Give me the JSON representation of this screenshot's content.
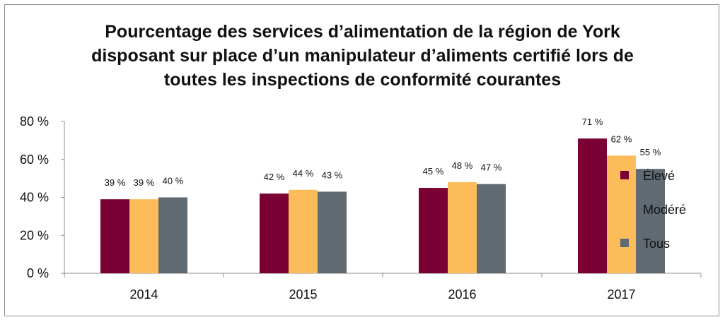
{
  "chart_data": {
    "type": "bar",
    "title_lines": [
      "Pourcentage des services d’alimentation de la région de York",
      "disposant sur place d’un manipulateur d’aliments certifié lors de",
      "toutes les inspections de conformité courantes"
    ],
    "categories": [
      "2014",
      "2015",
      "2016",
      "2017"
    ],
    "series": [
      {
        "name": "Élevé",
        "color": "#7b0034",
        "values": [
          39,
          42,
          45,
          71
        ],
        "labels": [
          "39 %",
          "42 %",
          "45 %",
          "71 %"
        ]
      },
      {
        "name": "Modéré",
        "color": "#fcbc5a",
        "values": [
          39,
          44,
          48,
          62
        ],
        "labels": [
          "39 %",
          "44 %",
          "48 %",
          "62 %"
        ]
      },
      {
        "name": "Tous",
        "color": "#5f6a72",
        "values": [
          40,
          43,
          47,
          55
        ],
        "labels": [
          "40 %",
          "43 %",
          "47 %",
          "55 %"
        ]
      }
    ],
    "yticks": [
      {
        "value": 0,
        "label": "0 %"
      },
      {
        "value": 20,
        "label": "20 %"
      },
      {
        "value": 40,
        "label": "40 %"
      },
      {
        "value": 60,
        "label": "60 %"
      },
      {
        "value": 80,
        "label": "80 %"
      }
    ],
    "ylim": [
      0,
      80
    ],
    "grid": false,
    "legend_position": "right"
  }
}
